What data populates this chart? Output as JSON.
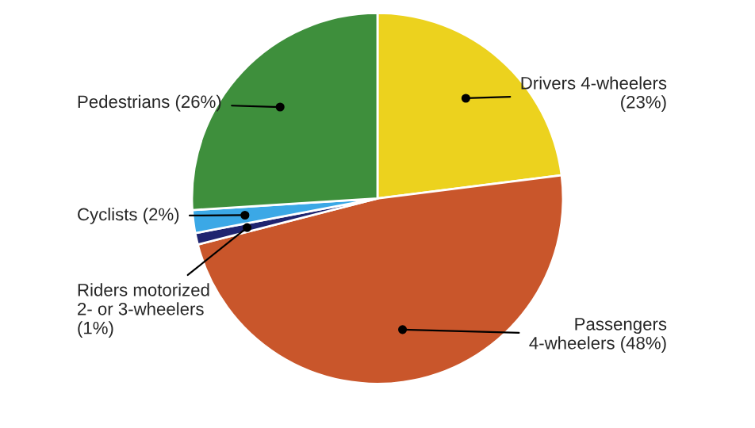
{
  "chart_data": {
    "type": "pie",
    "categories": [
      "Drivers 4-wheelers\n(23%)",
      "Passengers\n4-wheelers (48%)",
      "Riders motorized\n2- or 3-wheelers\n(1%)",
      "Cyclists (2%)",
      "Pedestrians (26%)"
    ],
    "values": [
      23,
      48,
      1,
      2,
      26
    ],
    "colors": [
      "#ecd21e",
      "#c9562b",
      "#1f2470",
      "#3ba8e6",
      "#3e8f3c"
    ]
  }
}
